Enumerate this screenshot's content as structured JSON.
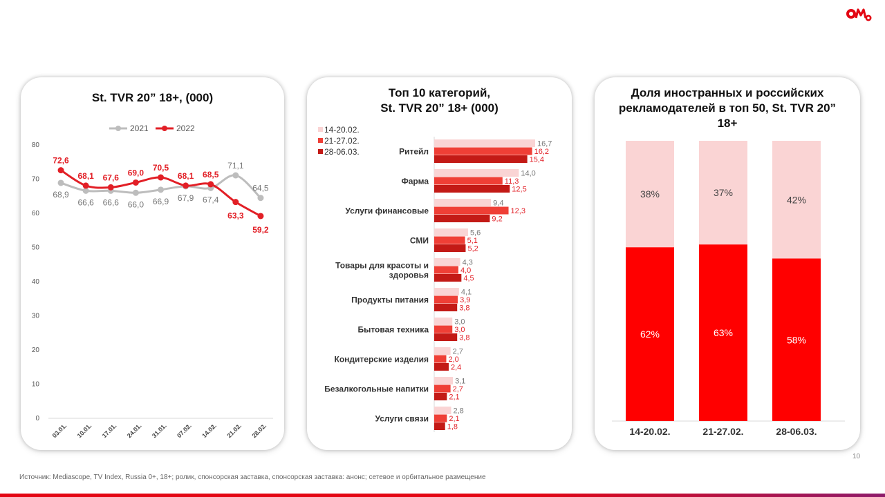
{
  "colors": {
    "red": "#e21f26",
    "gray": "#bdbdbd",
    "light_pink": "#fad4d4",
    "mid_red": "#ef3f36",
    "dark_red": "#c31a16",
    "bright_red": "#ff0000",
    "logo_red": "#e30613"
  },
  "footer": {
    "source": "Источник: Mediascope, TV Index,  Russia 0+, 18+; ролик, спонсорская заставка, спонсорская заставка: анонс; сетевое и орбитальное размещение",
    "page_number": "10"
  },
  "logo": {
    "icon": "omd-logo"
  },
  "chart_data": [
    {
      "type": "line",
      "title": "St. TVR 20” 18+, (000)",
      "categories": [
        "03.01.",
        "10.01.",
        "17.01.",
        "24.01.",
        "31.01.",
        "07.02.",
        "14.02.",
        "21.02.",
        "28.02."
      ],
      "series": [
        {
          "name": "2021",
          "values": [
            68.9,
            66.6,
            66.6,
            66.0,
            66.9,
            67.9,
            67.4,
            71.1,
            64.5
          ],
          "labels": [
            "68,9",
            "66,6",
            "66,6",
            "66,0",
            "66,9",
            "67,9",
            "67,4",
            "71,1",
            "64,5"
          ]
        },
        {
          "name": "2022",
          "values": [
            72.6,
            68.1,
            67.6,
            69.0,
            70.5,
            68.1,
            68.5,
            63.3,
            59.2
          ],
          "labels": [
            "72,6",
            "68,1",
            "67,6",
            "69,0",
            "70,5",
            "68,1",
            "68,5",
            "63,3",
            "59,2"
          ]
        }
      ],
      "ylim": [
        0,
        80
      ],
      "yticks": [
        0,
        10,
        20,
        30,
        40,
        50,
        60,
        70,
        80
      ],
      "legend": "top"
    },
    {
      "type": "bar",
      "orientation": "horizontal",
      "title_lines": [
        "Топ 10 категорий,",
        "St. TVR 20” 18+ (000)"
      ],
      "categories": [
        [
          "Ритейл"
        ],
        [
          "Фарма"
        ],
        [
          "Услуги финансовые"
        ],
        [
          "СМИ"
        ],
        [
          "Товары для красоты и",
          "здоровья"
        ],
        [
          "Продукты питания"
        ],
        [
          "Бытовая техника"
        ],
        [
          "Кондитерские изделия"
        ],
        [
          "Безалкогольные напитки"
        ],
        [
          "Услуги связи"
        ]
      ],
      "series": [
        {
          "name": "14-20.02.",
          "values": [
            16.7,
            14.0,
            9.4,
            5.6,
            4.3,
            4.1,
            3.0,
            2.7,
            3.1,
            2.8
          ],
          "labels": [
            "16,7",
            "14,0",
            "9,4",
            "5,6",
            "4,3",
            "4,1",
            "3,0",
            "2,7",
            "3,1",
            "2,8"
          ]
        },
        {
          "name": "21-27.02.",
          "values": [
            16.2,
            11.3,
            12.3,
            5.1,
            4.0,
            3.9,
            3.0,
            2.0,
            2.7,
            2.1
          ],
          "labels": [
            "16,2",
            "11,3",
            "12,3",
            "5,1",
            "4,0",
            "3,9",
            "3,0",
            "2,0",
            "2,7",
            "2,1"
          ]
        },
        {
          "name": "28-06.03.",
          "values": [
            15.4,
            12.5,
            9.2,
            5.2,
            4.5,
            3.8,
            3.8,
            2.4,
            2.1,
            1.8
          ],
          "labels": [
            "15,4",
            "12,5",
            "9,2",
            "5,2",
            "4,5",
            "3,8",
            "3,8",
            "2,4",
            "2,1",
            "1,8"
          ]
        }
      ],
      "legend": "top-left"
    },
    {
      "type": "bar",
      "stacked": true,
      "percent": true,
      "title_lines": [
        "Доля иностранных и российских",
        "рекламодателей в топ 50, St. TVR 20”",
        "18+"
      ],
      "categories": [
        "14-20.02.",
        "21-27.02.",
        "28-06.03."
      ],
      "series": [
        {
          "name": "bottom",
          "values": [
            62,
            63,
            58
          ],
          "labels": [
            "62%",
            "63%",
            "58%"
          ]
        },
        {
          "name": "top",
          "values": [
            38,
            37,
            42
          ],
          "labels": [
            "38%",
            "37%",
            "42%"
          ]
        }
      ]
    }
  ]
}
